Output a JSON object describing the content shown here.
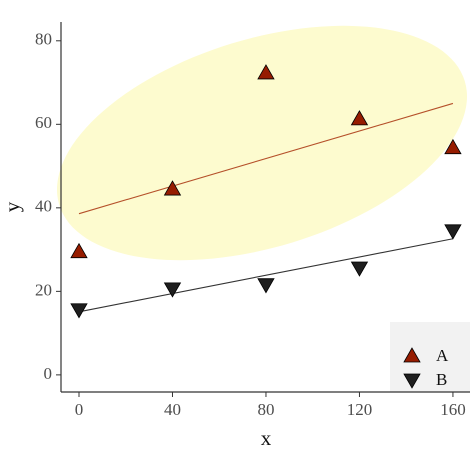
{
  "chart_data": {
    "type": "scatter",
    "x_label": "x",
    "y_label": "y",
    "xlim": [
      -7.7,
      167.3
    ],
    "ylim": [
      -4.1,
      84.5
    ],
    "xticks": [
      0,
      40,
      80,
      120,
      160
    ],
    "yticks": [
      0,
      20,
      40,
      60,
      80
    ],
    "grid": false,
    "legend": "bottom-right",
    "series": [
      {
        "name": "A",
        "color": "#961c00",
        "marker": "triangle-up",
        "x": [
          0,
          40,
          80,
          120,
          160
        ],
        "values": [
          29.5,
          44.5,
          72.3,
          61.3,
          54.4
        ],
        "fit": {
          "color": "#b5502a",
          "x": [
            0,
            160
          ],
          "values": [
            38.6,
            65.0
          ]
        }
      },
      {
        "name": "B",
        "color": "#1e1e1e",
        "marker": "triangle-down",
        "x": [
          0,
          40,
          80,
          120,
          160
        ],
        "values": [
          15.6,
          20.6,
          21.6,
          25.6,
          34.5
        ],
        "fit": {
          "color": "#333333",
          "x": [
            0,
            160
          ],
          "values": [
            15.1,
            32.6
          ]
        }
      }
    ]
  }
}
